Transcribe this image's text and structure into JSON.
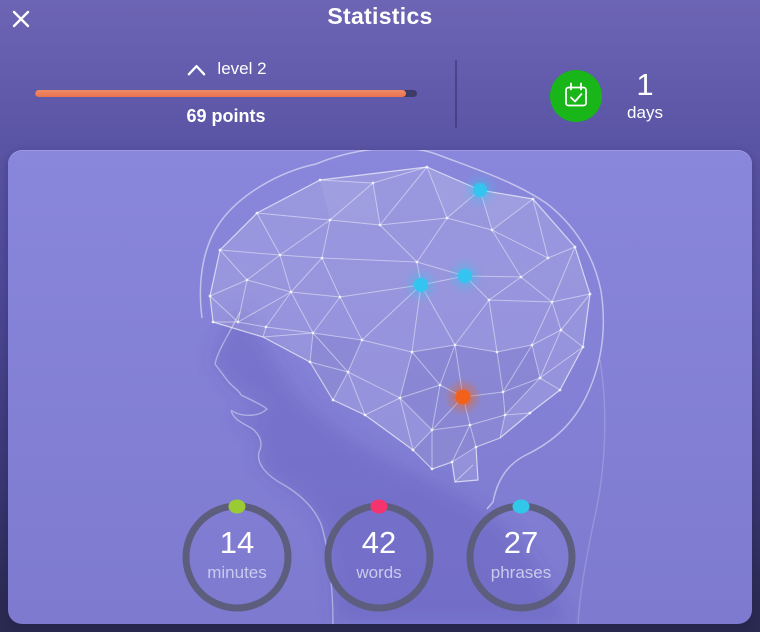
{
  "header": {
    "title": "Statistics",
    "close_icon": "close-x"
  },
  "level": {
    "icon": "chevron-up",
    "label": "level 2",
    "points_label": "69 points",
    "progress_percent": 97,
    "bar_fill_color": "#ee7f5b",
    "bar_track_color": "#3e3b68"
  },
  "streak": {
    "value": "1",
    "unit": "days",
    "badge_color": "#18b618",
    "icon": "calendar-check"
  },
  "brain": {
    "dots": [
      {
        "name": "activity-dot-top",
        "color": "#33c5ef"
      },
      {
        "name": "activity-dot-mid-left",
        "color": "#33c5ef"
      },
      {
        "name": "activity-dot-mid-right",
        "color": "#33c5ef"
      },
      {
        "name": "activity-dot-lower",
        "color": "#f2611c"
      }
    ]
  },
  "stats": [
    {
      "value": "14",
      "label": "minutes",
      "dot_color": "#9bcb34"
    },
    {
      "value": "42",
      "label": "words",
      "dot_color": "#f4336f"
    },
    {
      "value": "27",
      "label": "phrases",
      "dot_color": "#30c7e8"
    }
  ]
}
